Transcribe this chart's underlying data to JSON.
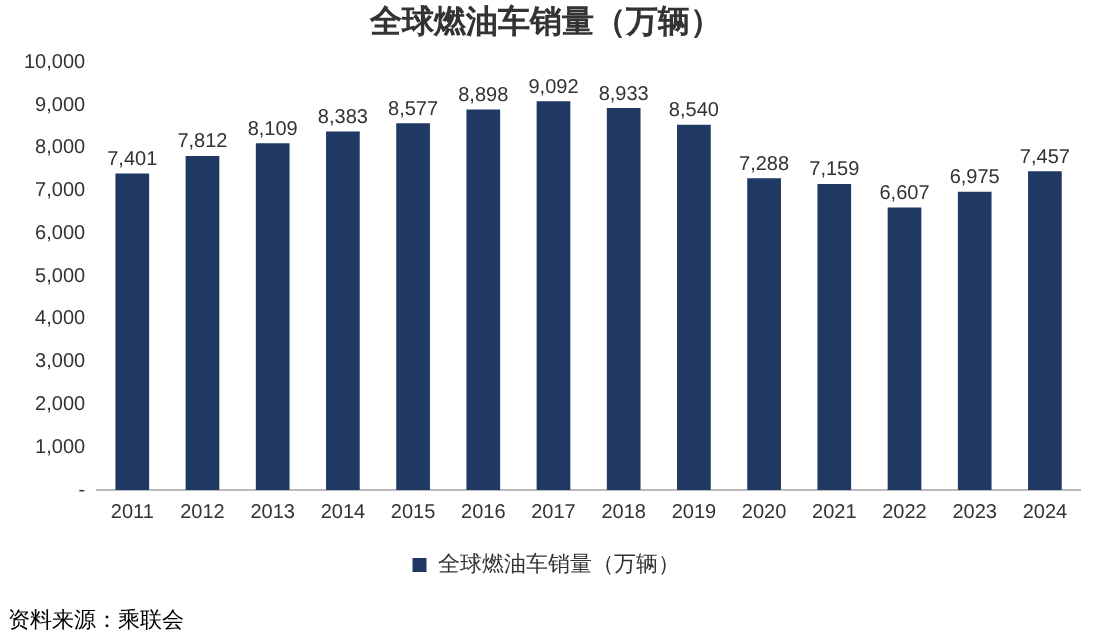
{
  "chart_data": {
    "type": "bar",
    "title": "全球燃油车销量（万辆）",
    "categories": [
      "2011",
      "2012",
      "2013",
      "2014",
      "2015",
      "2016",
      "2017",
      "2018",
      "2019",
      "2020",
      "2021",
      "2022",
      "2023",
      "2024"
    ],
    "series": [
      {
        "name": "全球燃油车销量（万辆）",
        "color": "#1f3864",
        "values": [
          7401,
          7812,
          8109,
          8383,
          8577,
          8898,
          9092,
          8933,
          8540,
          7288,
          7159,
          6607,
          6975,
          7457
        ],
        "value_labels": [
          "7,401",
          "7,812",
          "8,109",
          "8,383",
          "8,577",
          "8,898",
          "9,092",
          "8,933",
          "8,540",
          "7,288",
          "7,159",
          "6,607",
          "6,975",
          "7,457"
        ]
      }
    ],
    "ylim": [
      0,
      10000
    ],
    "yticks": [
      {
        "value": 0,
        "label": "-"
      },
      {
        "value": 1000,
        "label": "1,000"
      },
      {
        "value": 2000,
        "label": "2,000"
      },
      {
        "value": 3000,
        "label": "3,000"
      },
      {
        "value": 4000,
        "label": "4,000"
      },
      {
        "value": 5000,
        "label": "5,000"
      },
      {
        "value": 6000,
        "label": "6,000"
      },
      {
        "value": 7000,
        "label": "7,000"
      },
      {
        "value": 8000,
        "label": "8,000"
      },
      {
        "value": 9000,
        "label": "9,000"
      },
      {
        "value": 10000,
        "label": "10,000"
      }
    ],
    "grid": false,
    "legend": "bottom",
    "annotations": [
      "资料来源：乘联会"
    ]
  }
}
